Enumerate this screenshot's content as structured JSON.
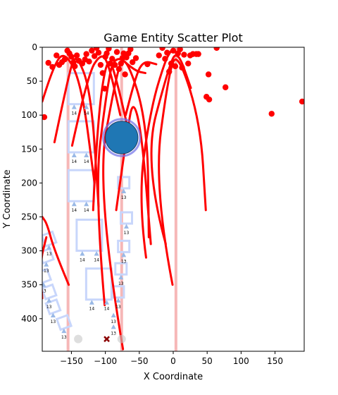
{
  "chart_data": {
    "type": "scatter",
    "title": "Game Entity Scatter Plot",
    "xlabel": "X Coordinate",
    "ylabel": "Y Coordinate",
    "xlim": [
      -193,
      193
    ],
    "ylim": [
      448,
      0
    ],
    "y_inverted": true,
    "grid": false,
    "legend": "none",
    "xticks": [
      -150,
      -100,
      -50,
      0,
      50,
      100,
      150
    ],
    "yticks": [
      0,
      50,
      100,
      150,
      200,
      250,
      300,
      350,
      400
    ],
    "colors": {
      "red": "#ff0000",
      "blue_circle": "#1f77b4",
      "blue_ring": "#6f6fe8",
      "vertical_lines": "#f4a6a6",
      "box_outline": "#c8d6fb",
      "triangle": "#9ab9e6",
      "grey_dot": "#c8c8c8",
      "x_marker": "#8b0000"
    },
    "vertical_lines_x": [
      -155,
      -76,
      4
    ],
    "red_points": [
      [
        -190,
        103
      ],
      [
        -184,
        23
      ],
      [
        -178,
        29
      ],
      [
        -172,
        12
      ],
      [
        -168,
        26
      ],
      [
        -164,
        22
      ],
      [
        -160,
        18
      ],
      [
        -156,
        5
      ],
      [
        -153,
        9
      ],
      [
        -150,
        14
      ],
      [
        -147,
        22
      ],
      [
        -145,
        28
      ],
      [
        -142,
        12
      ],
      [
        -139,
        20
      ],
      [
        -134,
        24
      ],
      [
        -130,
        18
      ],
      [
        -128,
        10
      ],
      [
        -124,
        21
      ],
      [
        -120,
        5
      ],
      [
        -116,
        13
      ],
      [
        -113,
        1
      ],
      [
        -110,
        8
      ],
      [
        -107,
        26
      ],
      [
        -104,
        38
      ],
      [
        -101,
        61
      ],
      [
        -100,
        14
      ],
      [
        -98,
        9
      ],
      [
        -95,
        2
      ],
      [
        -93,
        24
      ],
      [
        -90,
        17
      ],
      [
        -86,
        26
      ],
      [
        -83,
        7
      ],
      [
        -80,
        32
      ],
      [
        -77,
        24
      ],
      [
        -75,
        16
      ],
      [
        -73,
        9
      ],
      [
        -71,
        40
      ],
      [
        -69,
        15
      ],
      [
        -66,
        9
      ],
      [
        -63,
        3
      ],
      [
        -60,
        22
      ],
      [
        -55,
        16
      ],
      [
        -38,
        25
      ],
      [
        -21,
        12
      ],
      [
        -16,
        1
      ],
      [
        -12,
        17
      ],
      [
        -9,
        8
      ],
      [
        -6,
        36
      ],
      [
        -3,
        24
      ],
      [
        0,
        5
      ],
      [
        3,
        28
      ],
      [
        7,
        9
      ],
      [
        10,
        3
      ],
      [
        13,
        30
      ],
      [
        16,
        11
      ],
      [
        22,
        24
      ],
      [
        25,
        12
      ],
      [
        29,
        10
      ],
      [
        34,
        10
      ],
      [
        37,
        10
      ],
      [
        49,
        73
      ],
      [
        52,
        40
      ],
      [
        53,
        77
      ],
      [
        64,
        1
      ],
      [
        77,
        59
      ],
      [
        145,
        98
      ],
      [
        190,
        80
      ]
    ],
    "big_circle": {
      "x": -76,
      "y": 133,
      "r_data": 24
    },
    "red_arcs": [
      [
        [
          -193,
          80
        ],
        [
          -176,
          25
        ],
        [
          -159,
          6
        ],
        [
          -135,
          55
        ],
        [
          -116,
          200
        ]
      ],
      [
        [
          -175,
          140
        ],
        [
          -153,
          35
        ],
        [
          -143,
          8
        ],
        [
          -121,
          65
        ],
        [
          -110,
          235
        ]
      ],
      [
        [
          -149,
          145
        ],
        [
          -126,
          40
        ],
        [
          -106,
          8
        ],
        [
          -95,
          25
        ],
        [
          -78,
          100
        ]
      ],
      [
        [
          -118,
          240
        ],
        [
          -112,
          110
        ],
        [
          -97,
          8
        ],
        [
          -84,
          45
        ],
        [
          -61,
          145
        ]
      ],
      [
        [
          -101,
          380
        ],
        [
          -116,
          210
        ],
        [
          -99,
          70
        ],
        [
          -87,
          8
        ],
        [
          -56,
          35
        ],
        [
          -41,
          38
        ]
      ],
      [
        [
          -74,
          445
        ],
        [
          -114,
          210
        ],
        [
          -84,
          40
        ],
        [
          -71,
          8
        ],
        [
          -38,
          110
        ],
        [
          -36,
          280
        ]
      ],
      [
        [
          -70,
          100
        ],
        [
          -55,
          40
        ],
        [
          -43,
          20
        ],
        [
          -25,
          25
        ]
      ],
      [
        [
          -84,
          240
        ],
        [
          -68,
          125
        ],
        [
          -59,
          75
        ],
        [
          -46,
          130
        ],
        [
          -33,
          290
        ]
      ],
      [
        [
          -40,
          310
        ],
        [
          -52,
          220
        ],
        [
          -33,
          90
        ],
        [
          -12,
          20
        ],
        [
          -3,
          5
        ]
      ],
      [
        [
          -11,
          290
        ],
        [
          -44,
          170
        ],
        [
          -7,
          30
        ],
        [
          6,
          3
        ],
        [
          26,
          60
        ]
      ],
      [
        [
          -1,
          350
        ],
        [
          -29,
          205
        ],
        [
          -7,
          40
        ],
        [
          6,
          5
        ],
        [
          40,
          110
        ],
        [
          48,
          240
        ]
      ],
      [
        [
          -193,
          370
        ],
        [
          -197,
          320
        ],
        [
          -187,
          280
        ]
      ],
      [
        [
          -154,
          350
        ],
        [
          -175,
          300
        ],
        [
          -186,
          260
        ],
        [
          -193,
          250
        ]
      ]
    ],
    "box_labels": {
      "row_14": "14",
      "row_13": "13"
    },
    "triangles_14": [
      [
        -146,
        88
      ],
      [
        -128,
        88
      ],
      [
        -146,
        159
      ],
      [
        -128,
        159
      ],
      [
        -146,
        231
      ],
      [
        -128,
        231
      ],
      [
        -134,
        304
      ],
      [
        -113,
        304
      ],
      [
        -120,
        376
      ],
      [
        -98,
        376
      ]
    ],
    "triangles_13": [
      [
        -73,
        212
      ],
      [
        -69,
        264
      ],
      [
        -73,
        306
      ],
      [
        -77,
        339
      ],
      [
        -81,
        373
      ],
      [
        -88,
        395
      ],
      [
        -88,
        412
      ],
      [
        -183,
        295
      ],
      [
        -187,
        320
      ],
      [
        -191,
        350
      ],
      [
        -183,
        373
      ],
      [
        -177,
        395
      ],
      [
        -161,
        418
      ]
    ],
    "grey_dots": [
      [
        -140,
        430
      ],
      [
        -76,
        430
      ]
    ],
    "x_marker": [
      -98,
      430
    ]
  }
}
